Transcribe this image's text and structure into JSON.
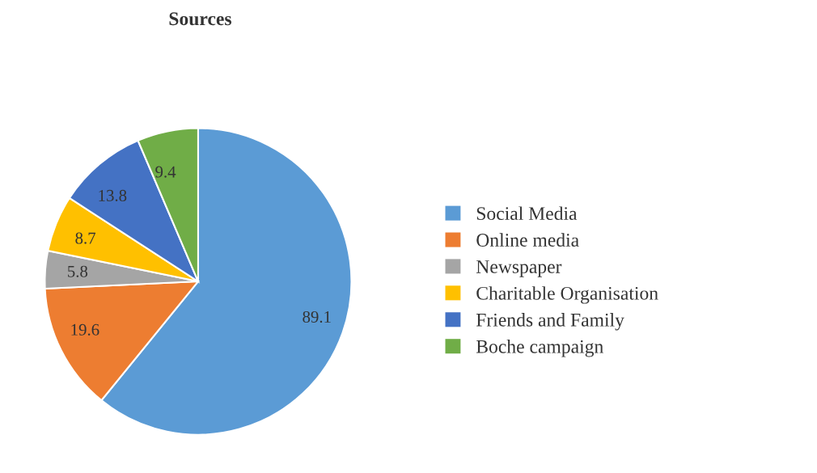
{
  "chart_data": {
    "type": "pie",
    "title": "Sources",
    "categories": [
      "Social Media",
      "Online media",
      "Newspaper",
      "Charitable Organisation",
      "Friends and Family",
      "Boche campaign"
    ],
    "values": [
      89.1,
      19.6,
      5.8,
      8.7,
      13.8,
      9.4
    ],
    "colors": [
      "#5b9bd5",
      "#ed7d31",
      "#a5a5a5",
      "#ffc000",
      "#4472c4",
      "#70ad47"
    ],
    "data_labels": true,
    "legend": "right"
  }
}
